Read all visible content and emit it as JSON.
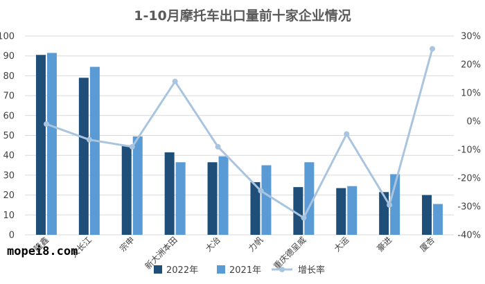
{
  "watermark": "mopei8.com",
  "colors": {
    "series_2022": "#1f4e79",
    "series_2021": "#5b9bd5",
    "growth_line": "#a9c4df",
    "gridline": "#d9d9d9",
    "text": "#404040"
  },
  "chart_data": {
    "type": "bar",
    "title": "1-10月摩托车出口量前十家企业情况",
    "categories": [
      "隆鑫",
      "大长江",
      "宗申",
      "新大洲本田",
      "大冶",
      "力帆",
      "重庆德呈威",
      "大运",
      "豪进",
      "厦杏"
    ],
    "series": [
      {
        "name": "2022年",
        "type": "bar",
        "axis": "left",
        "values": [
          90.5,
          79,
          45,
          41.5,
          36.5,
          26.5,
          24,
          23.5,
          21.5,
          20
        ]
      },
      {
        "name": "2021年",
        "type": "bar",
        "axis": "left",
        "values": [
          91.5,
          84.5,
          49.5,
          36.5,
          39.5,
          35,
          36.5,
          24.5,
          30.5,
          15.5
        ]
      },
      {
        "name": "增长率",
        "type": "line",
        "axis": "right",
        "values": [
          -1.0,
          -6.5,
          -9.0,
          14.0,
          -9.0,
          -24.5,
          -34.0,
          -4.5,
          -29.5,
          25.5
        ]
      }
    ],
    "y_left": {
      "ylim": [
        0,
        100
      ],
      "ticks": [
        0,
        10,
        20,
        30,
        40,
        50,
        60,
        70,
        80,
        90,
        100
      ],
      "tick_labels": [
        "0",
        "10",
        "20",
        "30",
        "40",
        "50",
        "60",
        "70",
        "80",
        "90",
        "100"
      ]
    },
    "y_right": {
      "ylim": [
        -40,
        30
      ],
      "ticks": [
        -40,
        -30,
        -20,
        -10,
        0,
        10,
        20,
        30
      ],
      "tick_labels": [
        "-40%",
        "-30%",
        "-20%",
        "-10%",
        "0%",
        "10%",
        "20%",
        "30%"
      ]
    },
    "grid": true,
    "legend": {
      "position": "bottom",
      "items": [
        "2022年",
        "2021年",
        "增长率"
      ]
    }
  }
}
